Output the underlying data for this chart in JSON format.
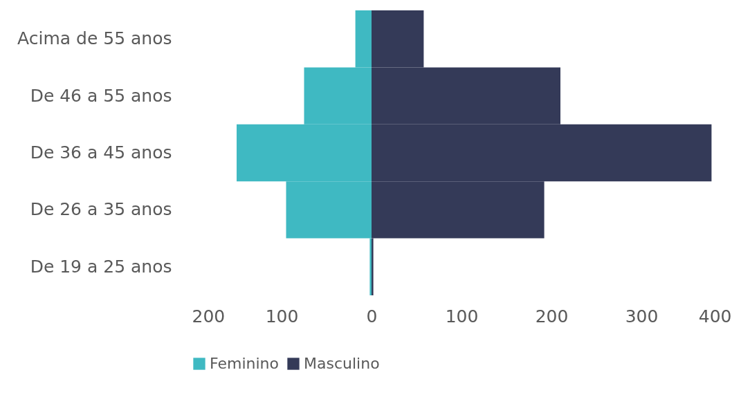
{
  "chart_data": {
    "type": "bar",
    "orientation": "horizontal",
    "stacked": true,
    "categories": [
      "Acima de 55 anos",
      "De 46 a 55 anos",
      "De 36 a 45 anos",
      "De 26 a 35 anos",
      "De 19 a 25 anos"
    ],
    "series": [
      {
        "name": "Feminino",
        "color": "#3fb9c2",
        "values": [
          -18,
          -75,
          -150,
          -95,
          -2
        ]
      },
      {
        "name": "Masculino",
        "color": "#343a58",
        "values": [
          58,
          210,
          378,
          192,
          2
        ]
      }
    ],
    "xlim": [
      -200,
      400
    ],
    "xticks": [
      {
        "value": -200,
        "label": "200"
      },
      {
        "value": -100,
        "label": "100"
      },
      0,
      100,
      200,
      300,
      400
    ],
    "grid": false,
    "legend": "bottom"
  }
}
